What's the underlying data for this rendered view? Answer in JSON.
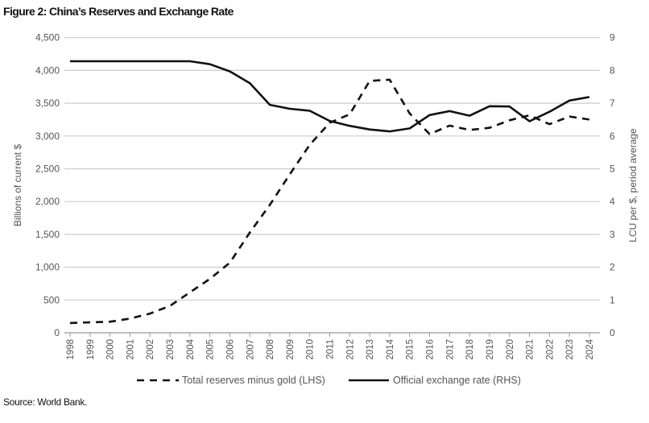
{
  "chart_data": {
    "type": "line",
    "title": "Figure 2: China’s Reserves and Exchange Rate",
    "source": "Source: World Bank.",
    "x": [
      1998,
      1999,
      2000,
      2001,
      2002,
      2003,
      2004,
      2005,
      2006,
      2007,
      2008,
      2009,
      2010,
      2011,
      2012,
      2013,
      2014,
      2015,
      2016,
      2017,
      2018,
      2019,
      2020,
      2021,
      2022,
      2023,
      2024
    ],
    "ylabel_left": "Billions of current $",
    "ylabel_right": "LCU per $, period average",
    "ylim_left": [
      0,
      4500
    ],
    "ylim_right": [
      0,
      9
    ],
    "yticks_left": [
      "0",
      "500",
      "1,000",
      "1,500",
      "2,000",
      "2,500",
      "3,000",
      "3,500",
      "4,000",
      "4,500"
    ],
    "yticks_right": [
      "0",
      "1",
      "2",
      "3",
      "4",
      "5",
      "6",
      "7",
      "8",
      "9"
    ],
    "grid": true,
    "legend_position": "bottom",
    "series": [
      {
        "name": "Total reserves minus gold (LHS)",
        "axis": "left",
        "style": "dashed",
        "values": [
          149,
          158,
          168,
          216,
          292,
          409,
          615,
          822,
          1069,
          1530,
          1950,
          2416,
          2866,
          3203,
          3331,
          3840,
          3859,
          3345,
          3030,
          3159,
          3092,
          3125,
          3240,
          3316,
          3180,
          3297,
          3250
        ]
      },
      {
        "name": "Official exchange rate (RHS)",
        "axis": "right",
        "style": "solid",
        "values": [
          8.28,
          8.28,
          8.28,
          8.28,
          8.28,
          8.28,
          8.28,
          8.19,
          7.97,
          7.61,
          6.95,
          6.83,
          6.77,
          6.46,
          6.31,
          6.2,
          6.14,
          6.23,
          6.64,
          6.76,
          6.62,
          6.91,
          6.9,
          6.45,
          6.74,
          7.08,
          7.19
        ]
      }
    ]
  }
}
